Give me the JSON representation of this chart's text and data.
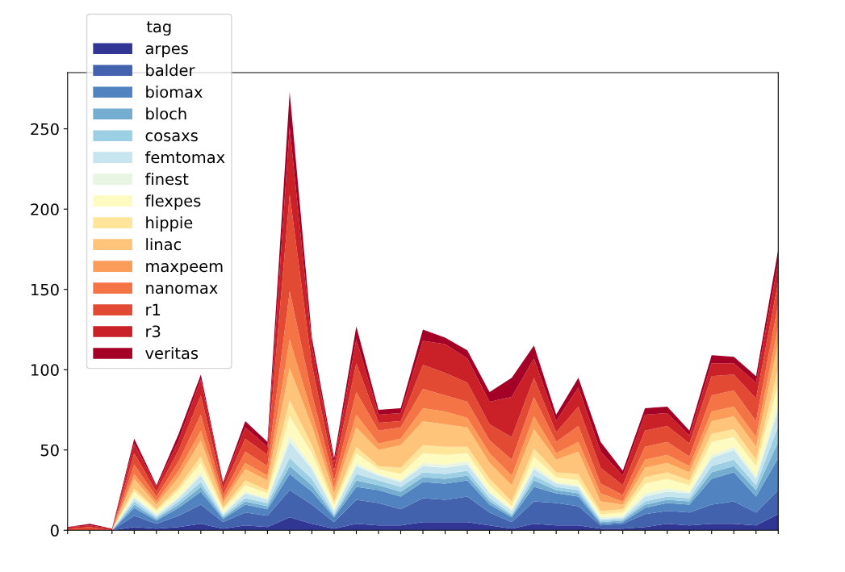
{
  "chart_data": {
    "type": "area",
    "stacked": true,
    "legend_title": "tag",
    "legend": "top left",
    "grid": false,
    "categories": [
      null,
      null,
      null,
      null,
      null,
      null,
      null,
      null,
      null,
      null,
      null,
      null,
      null,
      null,
      null,
      null,
      null,
      null,
      null,
      null,
      null,
      null,
      null,
      null,
      null,
      null,
      null,
      null,
      null,
      null,
      null,
      null,
      null
    ],
    "ylim": [
      0,
      285
    ],
    "yticks": [
      0,
      50,
      100,
      150,
      200,
      250
    ],
    "series": [
      {
        "name": "arpes",
        "color": "#313695",
        "values": [
          0,
          0,
          0,
          2,
          1,
          2,
          4,
          1,
          3,
          2,
          8,
          4,
          1,
          4,
          3,
          3,
          5,
          5,
          5,
          3,
          1,
          4,
          3,
          3,
          1,
          1,
          2,
          4,
          3,
          4,
          4,
          3,
          10
        ]
      },
      {
        "name": "balder",
        "color": "#4262ad",
        "values": [
          0,
          0,
          0,
          7,
          3,
          7,
          12,
          4,
          8,
          7,
          17,
          12,
          4,
          15,
          14,
          10,
          15,
          14,
          16,
          8,
          4,
          14,
          14,
          12,
          2,
          3,
          8,
          8,
          8,
          12,
          14,
          8,
          15
        ]
      },
      {
        "name": "biomax",
        "color": "#5083bf",
        "values": [
          0,
          0,
          0,
          5,
          2,
          5,
          8,
          2,
          5,
          4,
          10,
          8,
          3,
          8,
          8,
          8,
          10,
          10,
          10,
          5,
          3,
          9,
          6,
          6,
          1,
          1,
          4,
          5,
          5,
          16,
          18,
          10,
          20
        ]
      },
      {
        "name": "bloch",
        "color": "#75add1",
        "values": [
          0,
          0,
          0,
          2,
          1,
          2,
          3,
          1,
          2,
          2,
          5,
          4,
          1,
          4,
          3,
          3,
          3,
          3,
          3,
          2,
          1,
          4,
          2,
          2,
          1,
          1,
          2,
          2,
          2,
          4,
          4,
          4,
          10
        ]
      },
      {
        "name": "cosaxs",
        "color": "#9dcfe4",
        "values": [
          0,
          0,
          0,
          2,
          1,
          2,
          3,
          1,
          2,
          2,
          5,
          4,
          1,
          4,
          3,
          3,
          3,
          3,
          3,
          2,
          1,
          3,
          2,
          2,
          1,
          1,
          2,
          2,
          2,
          4,
          4,
          3,
          10
        ]
      },
      {
        "name": "femtomax",
        "color": "#c6e5ef",
        "values": [
          0,
          0,
          0,
          2,
          1,
          2,
          4,
          1,
          3,
          2,
          10,
          6,
          2,
          5,
          3,
          3,
          4,
          4,
          4,
          3,
          2,
          4,
          2,
          2,
          1,
          1,
          3,
          3,
          3,
          5,
          6,
          4,
          10
        ]
      },
      {
        "name": "finest",
        "color": "#e9f5e3",
        "values": [
          0,
          0,
          0,
          1,
          1,
          1,
          2,
          1,
          1,
          1,
          4,
          2,
          1,
          2,
          1,
          1,
          2,
          2,
          2,
          1,
          1,
          2,
          1,
          1,
          1,
          1,
          2,
          2,
          1,
          2,
          2,
          2,
          4
        ]
      },
      {
        "name": "flexpes",
        "color": "#fefbc0",
        "values": [
          0,
          0,
          0,
          3,
          2,
          4,
          6,
          2,
          4,
          3,
          12,
          8,
          3,
          6,
          3,
          4,
          6,
          6,
          5,
          4,
          2,
          6,
          3,
          3,
          2,
          2,
          6,
          6,
          4,
          8,
          6,
          6,
          12
        ]
      },
      {
        "name": "hippie",
        "color": "#fee59a",
        "values": [
          0,
          0,
          0,
          2,
          1,
          2,
          4,
          1,
          3,
          2,
          10,
          5,
          2,
          4,
          2,
          4,
          5,
          5,
          4,
          4,
          3,
          5,
          3,
          4,
          2,
          2,
          4,
          4,
          3,
          5,
          5,
          4,
          10
        ]
      },
      {
        "name": "linac",
        "color": "#fec57a",
        "values": [
          0,
          0,
          0,
          6,
          3,
          6,
          10,
          3,
          7,
          6,
          20,
          12,
          5,
          12,
          10,
          14,
          15,
          14,
          12,
          10,
          10,
          12,
          8,
          14,
          6,
          3,
          6,
          6,
          5,
          8,
          8,
          8,
          16
        ]
      },
      {
        "name": "maxpeem",
        "color": "#fb9d59",
        "values": [
          0,
          0,
          0,
          3,
          2,
          4,
          6,
          2,
          4,
          3,
          18,
          8,
          3,
          8,
          4,
          4,
          8,
          8,
          6,
          6,
          6,
          8,
          4,
          6,
          5,
          2,
          5,
          5,
          4,
          6,
          6,
          6,
          10
        ]
      },
      {
        "name": "nanomax",
        "color": "#f47446",
        "values": [
          0,
          0,
          0,
          6,
          3,
          6,
          10,
          3,
          7,
          6,
          30,
          12,
          5,
          14,
          8,
          7,
          12,
          10,
          10,
          8,
          10,
          12,
          7,
          10,
          6,
          4,
          8,
          8,
          6,
          10,
          10,
          10,
          14
        ]
      },
      {
        "name": "r1",
        "color": "#e34a33",
        "values": [
          1,
          2,
          0,
          7,
          3,
          7,
          12,
          4,
          8,
          7,
          60,
          18,
          6,
          18,
          5,
          4,
          15,
          14,
          12,
          10,
          14,
          12,
          6,
          12,
          10,
          6,
          10,
          10,
          8,
          12,
          10,
          14,
          14
        ]
      },
      {
        "name": "r3",
        "color": "#c92127",
        "values": [
          1,
          1,
          1,
          6,
          3,
          6,
          10,
          3,
          7,
          5,
          42,
          12,
          5,
          15,
          5,
          5,
          15,
          18,
          15,
          14,
          25,
          12,
          7,
          12,
          10,
          6,
          10,
          8,
          5,
          8,
          7,
          10,
          12
        ]
      },
      {
        "name": "veritas",
        "color": "#a50026",
        "values": [
          0,
          1,
          0,
          3,
          1,
          4,
          3,
          1,
          4,
          3,
          22,
          5,
          3,
          8,
          3,
          3,
          7,
          4,
          5,
          6,
          12,
          8,
          4,
          6,
          6,
          3,
          4,
          4,
          3,
          5,
          4,
          4,
          8
        ]
      }
    ]
  }
}
